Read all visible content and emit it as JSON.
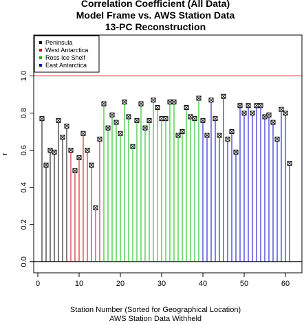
{
  "chart_data": {
    "type": "lollipop",
    "title": [
      "Correlation Coefficient (All Data)",
      "Model Frame vs. AWS Station Data",
      "13-PC Reconstruction"
    ],
    "xlabel": "Station Number (Sorted for Geographical Location)",
    "xlabel2": "AWS Station Data Withheld",
    "ylabel": "r",
    "xlim": [
      -1,
      64
    ],
    "ylim": [
      -0.06,
      1.22
    ],
    "x_ticks": [
      0,
      10,
      20,
      30,
      40,
      50,
      60
    ],
    "y_ticks": [
      0.0,
      0.2,
      0.4,
      0.6,
      0.8,
      1.0
    ],
    "y_tick_labels": [
      "0.0",
      "0.2",
      "0.4",
      "0.6",
      "0.8",
      "1.0"
    ],
    "reference_lines": [
      {
        "y": 1.0,
        "color": "#cc0000"
      },
      {
        "y": 0.0,
        "color": "#000000"
      }
    ],
    "legend": {
      "placement": "top-left",
      "entries": [
        {
          "label": "Peninsula",
          "color": "#000000"
        },
        {
          "label": "West Antarctica",
          "color": "#cc0000"
        },
        {
          "label": "Ross Ice Shelf",
          "color": "#00bb00"
        },
        {
          "label": "East Antarctica",
          "color": "#0000cc"
        }
      ]
    },
    "series": [
      {
        "region": 0,
        "x": [
          1,
          2,
          3,
          4,
          5,
          6,
          7
        ],
        "values": [
          0.77,
          0.52,
          0.6,
          0.59,
          0.76,
          0.67,
          0.73
        ]
      },
      {
        "region": 1,
        "x": [
          8,
          9,
          10,
          11,
          12,
          13,
          14,
          15
        ],
        "values": [
          0.6,
          0.49,
          0.56,
          0.69,
          0.6,
          0.52,
          0.29,
          0.66
        ]
      },
      {
        "region": 2,
        "x": [
          16,
          17,
          18,
          19,
          20,
          21,
          22,
          23,
          24,
          25,
          26,
          27,
          28,
          29,
          30,
          31,
          32,
          33,
          34,
          35,
          36,
          37,
          38,
          39
        ],
        "values": [
          0.85,
          0.72,
          0.79,
          0.75,
          0.69,
          0.86,
          0.78,
          0.62,
          0.76,
          0.85,
          0.72,
          0.76,
          0.87,
          0.83,
          0.77,
          0.77,
          0.86,
          0.86,
          0.68,
          0.7,
          0.83,
          0.78,
          0.77,
          0.88
        ]
      },
      {
        "region": 3,
        "x": [
          40,
          41,
          42,
          43,
          44,
          45,
          46,
          47,
          48,
          49,
          50,
          51,
          52,
          53,
          54,
          55,
          56,
          57,
          58,
          59,
          60,
          61
        ],
        "values": [
          0.76,
          0.68,
          0.87,
          0.77,
          0.68,
          0.89,
          0.66,
          0.7,
          0.59,
          0.84,
          0.8,
          0.84,
          0.8,
          0.84,
          0.84,
          0.78,
          0.79,
          0.75,
          0.66,
          0.82,
          0.8,
          0.53
        ]
      }
    ]
  }
}
